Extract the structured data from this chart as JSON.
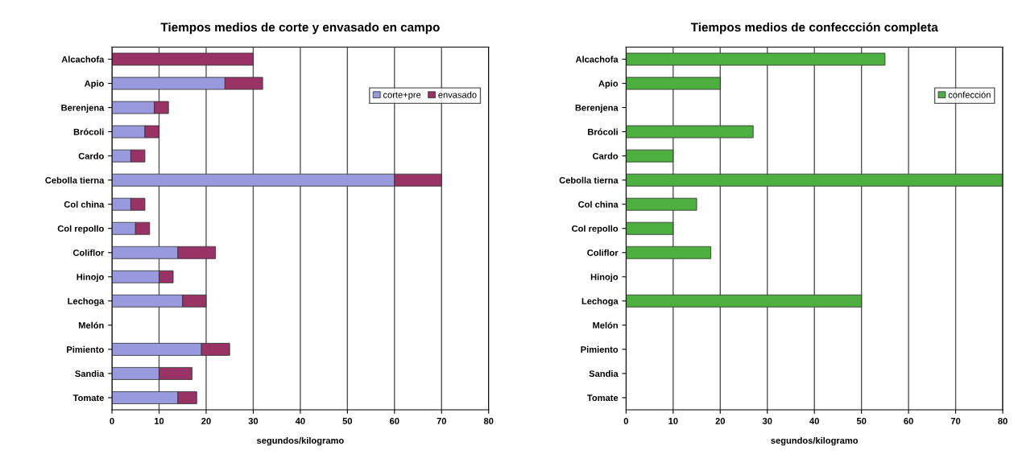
{
  "chart_data": [
    {
      "type": "bar",
      "orientation": "horizontal",
      "stacked": true,
      "title": "Tiempos medios de corte y envasado en campo",
      "xlabel": "segundos/kilogramo",
      "categories": [
        "Alcachofa",
        "Apio",
        "Berenjena",
        "Brócoli",
        "Cardo",
        "Cebolla tierna",
        "Col china",
        "Col repollo",
        "Coliflor",
        "Hinojo",
        "Lechoga",
        "Melón",
        "Pimiento",
        "Sandia",
        "Tomate"
      ],
      "series": [
        {
          "name": "corte+pre",
          "color": "#9999dd",
          "values": [
            0,
            24,
            9,
            7,
            4,
            60,
            4,
            5,
            14,
            10,
            15,
            null,
            19,
            10,
            14
          ]
        },
        {
          "name": "envasado",
          "color": "#993366",
          "values": [
            30,
            8,
            3,
            3,
            3,
            10,
            3,
            3,
            8,
            3,
            5,
            null,
            6,
            7,
            4
          ]
        }
      ],
      "xlim": [
        0,
        80
      ],
      "xticks": [
        0,
        10,
        20,
        30,
        40,
        50,
        60,
        70,
        80
      ],
      "grid": "x",
      "legend": "top right"
    },
    {
      "type": "bar",
      "orientation": "horizontal",
      "title": "Tiempos medios de confeccción completa",
      "xlabel": "segundos/kilogramo",
      "categories": [
        "Alcachofa",
        "Apio",
        "Berenjena",
        "Brócoli",
        "Cardo",
        "Cebolla tierna",
        "Col china",
        "Col repollo",
        "Coliflor",
        "Hinojo",
        "Lechoga",
        "Melón",
        "Pimiento",
        "Sandia",
        "Tomate"
      ],
      "series": [
        {
          "name": "confección",
          "color": "#4caf3f",
          "values": [
            55,
            20,
            null,
            27,
            10,
            80,
            15,
            10,
            18,
            null,
            50,
            null,
            null,
            null,
            null
          ]
        }
      ],
      "xlim": [
        0,
        80
      ],
      "xticks": [
        0,
        10,
        20,
        30,
        40,
        50,
        60,
        70,
        80
      ],
      "grid": "x",
      "legend": "top right"
    }
  ]
}
